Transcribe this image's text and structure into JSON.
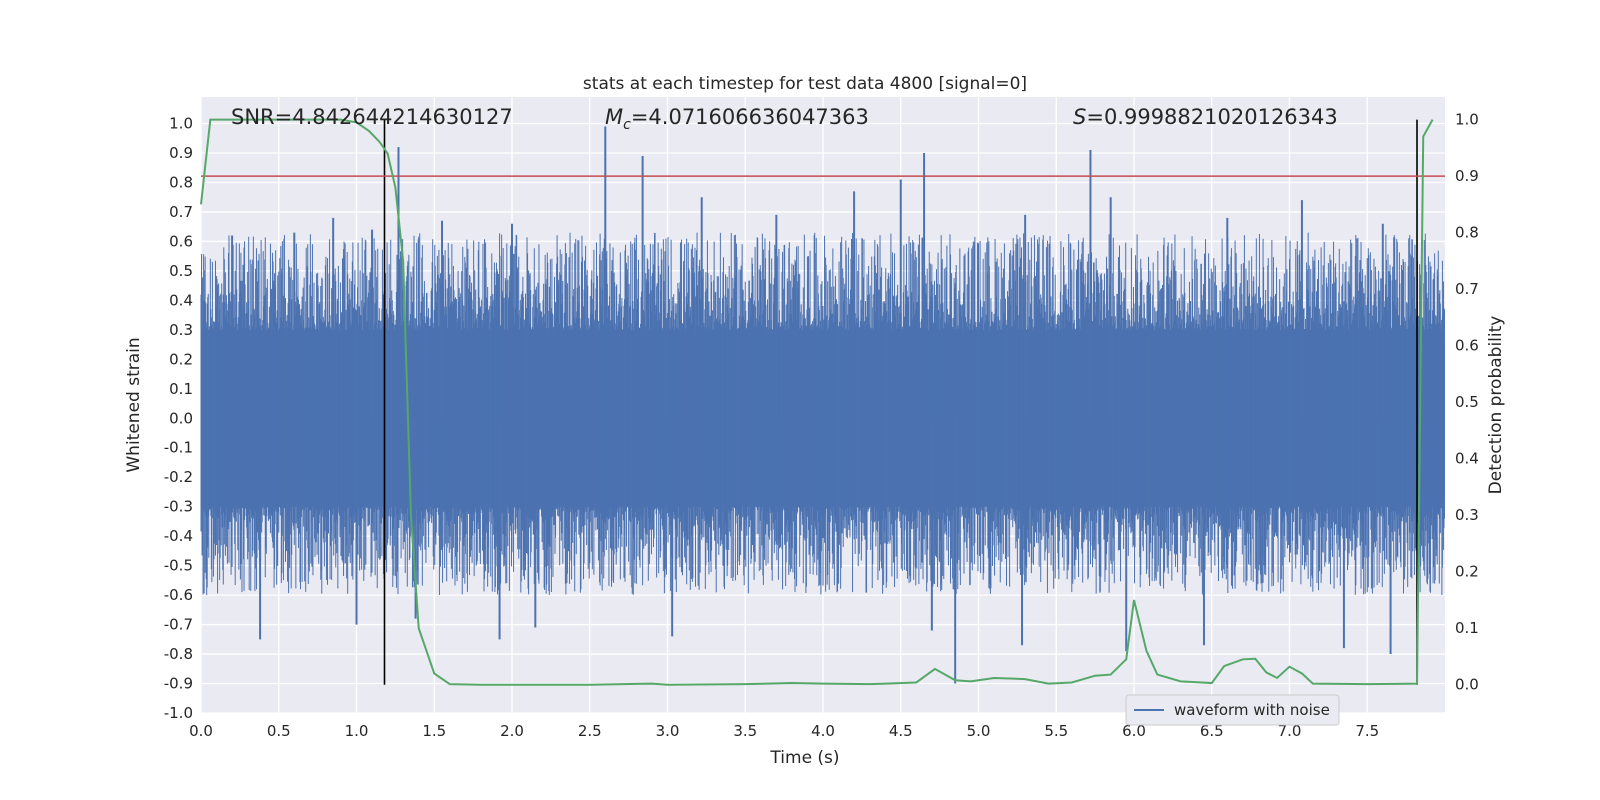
{
  "colors": {
    "background": "#ffffff",
    "plot_bg": "#eaeaf2",
    "grid": "#ffffff",
    "waveform": "#4c72b0",
    "probability": "#55a868",
    "threshold": "#c44e52",
    "markers": "#000000",
    "text": "#262626"
  },
  "chart_data": {
    "type": "line",
    "title": "stats at each timestep for test data 4800 [signal=0]",
    "xlabel": "Time (s)",
    "ylabel_left": "Whitened strain",
    "ylabel_right": "Detection probability",
    "xlim": [
      0.0,
      8.0
    ],
    "ylim_left": [
      -1.0,
      1.09
    ],
    "ylim_right": [
      -0.05,
      1.04
    ],
    "grid": true,
    "legend_position": "lower-right",
    "xticks": [
      "0.0",
      "0.5",
      "1.0",
      "1.5",
      "2.0",
      "2.5",
      "3.0",
      "3.5",
      "4.0",
      "4.5",
      "5.0",
      "5.5",
      "6.0",
      "6.5",
      "7.0",
      "7.5"
    ],
    "yticks_left": [
      "1.0",
      "0.9",
      "0.8",
      "0.7",
      "0.6",
      "0.5",
      "0.4",
      "0.3",
      "0.2",
      "0.1",
      "0.0",
      "-0.1",
      "-0.2",
      "-0.3",
      "-0.4",
      "-0.5",
      "-0.6",
      "-0.7",
      "-0.8",
      "-0.9",
      "-1.0"
    ],
    "yticks_right": [
      "1.0",
      "0.9",
      "0.8",
      "0.7",
      "0.6",
      "0.5",
      "0.4",
      "0.3",
      "0.2",
      "0.1",
      "0.0"
    ],
    "annotations": {
      "snr": "SNR=4.842644214630127",
      "mc_symbol": "M",
      "mc_sub": "c",
      "mc_value": "=4.071606636047363",
      "s_symbol": "S",
      "s_value": "=0.9998821020126343"
    },
    "threshold_probability": 0.9,
    "vertical_markers": [
      1.18,
      7.82
    ],
    "series": [
      {
        "name": "waveform with noise",
        "axis": "left",
        "envelope_positive_spikes": [
          {
            "t": 0.2,
            "v": 0.62
          },
          {
            "t": 0.6,
            "v": 0.63
          },
          {
            "t": 0.85,
            "v": 0.68
          },
          {
            "t": 1.1,
            "v": 0.64
          },
          {
            "t": 1.27,
            "v": 0.92
          },
          {
            "t": 1.55,
            "v": 0.67
          },
          {
            "t": 2.0,
            "v": 0.66
          },
          {
            "t": 2.6,
            "v": 0.99
          },
          {
            "t": 2.84,
            "v": 0.89
          },
          {
            "t": 3.22,
            "v": 0.75
          },
          {
            "t": 3.7,
            "v": 0.69
          },
          {
            "t": 4.2,
            "v": 0.77
          },
          {
            "t": 4.5,
            "v": 0.81
          },
          {
            "t": 4.65,
            "v": 0.9
          },
          {
            "t": 5.3,
            "v": 0.69
          },
          {
            "t": 5.72,
            "v": 0.91
          },
          {
            "t": 5.85,
            "v": 0.75
          },
          {
            "t": 6.6,
            "v": 0.68
          },
          {
            "t": 7.08,
            "v": 0.74
          },
          {
            "t": 7.6,
            "v": 0.66
          }
        ],
        "envelope_negative_spikes": [
          {
            "t": 0.38,
            "v": -0.75
          },
          {
            "t": 1.0,
            "v": -0.7
          },
          {
            "t": 1.38,
            "v": -0.68
          },
          {
            "t": 1.92,
            "v": -0.75
          },
          {
            "t": 2.15,
            "v": -0.71
          },
          {
            "t": 3.03,
            "v": -0.74
          },
          {
            "t": 4.7,
            "v": -0.72
          },
          {
            "t": 4.85,
            "v": -0.9
          },
          {
            "t": 5.28,
            "v": -0.77
          },
          {
            "t": 5.95,
            "v": -0.79
          },
          {
            "t": 6.45,
            "v": -0.77
          },
          {
            "t": 7.35,
            "v": -0.78
          },
          {
            "t": 7.65,
            "v": -0.8
          }
        ]
      },
      {
        "name": "",
        "axis": "right",
        "points": [
          [
            0.0,
            0.85
          ],
          [
            0.06,
            1.0
          ],
          [
            0.3,
            1.0
          ],
          [
            0.6,
            1.0
          ],
          [
            0.9,
            1.0
          ],
          [
            1.0,
            0.995
          ],
          [
            1.08,
            0.98
          ],
          [
            1.15,
            0.96
          ],
          [
            1.2,
            0.94
          ],
          [
            1.25,
            0.88
          ],
          [
            1.3,
            0.75
          ],
          [
            1.35,
            0.3
          ],
          [
            1.4,
            0.1
          ],
          [
            1.45,
            0.06
          ],
          [
            1.5,
            0.02
          ],
          [
            1.6,
            0.001
          ],
          [
            1.8,
            0.0
          ],
          [
            2.0,
            0.0
          ],
          [
            2.5,
            0.0
          ],
          [
            2.9,
            0.002
          ],
          [
            3.0,
            0.0
          ],
          [
            3.5,
            0.001
          ],
          [
            3.8,
            0.003
          ],
          [
            4.0,
            0.002
          ],
          [
            4.3,
            0.001
          ],
          [
            4.6,
            0.004
          ],
          [
            4.72,
            0.028
          ],
          [
            4.85,
            0.008
          ],
          [
            4.95,
            0.006
          ],
          [
            5.1,
            0.012
          ],
          [
            5.3,
            0.01
          ],
          [
            5.45,
            0.002
          ],
          [
            5.6,
            0.004
          ],
          [
            5.75,
            0.016
          ],
          [
            5.85,
            0.018
          ],
          [
            5.95,
            0.045
          ],
          [
            6.0,
            0.15
          ],
          [
            6.08,
            0.06
          ],
          [
            6.15,
            0.018
          ],
          [
            6.3,
            0.006
          ],
          [
            6.5,
            0.003
          ],
          [
            6.58,
            0.033
          ],
          [
            6.7,
            0.045
          ],
          [
            6.78,
            0.046
          ],
          [
            6.85,
            0.022
          ],
          [
            6.92,
            0.012
          ],
          [
            7.0,
            0.032
          ],
          [
            7.08,
            0.02
          ],
          [
            7.15,
            0.002
          ],
          [
            7.5,
            0.001
          ],
          [
            7.82,
            0.002
          ],
          [
            7.86,
            0.97
          ],
          [
            7.92,
            1.0
          ]
        ]
      }
    ]
  }
}
